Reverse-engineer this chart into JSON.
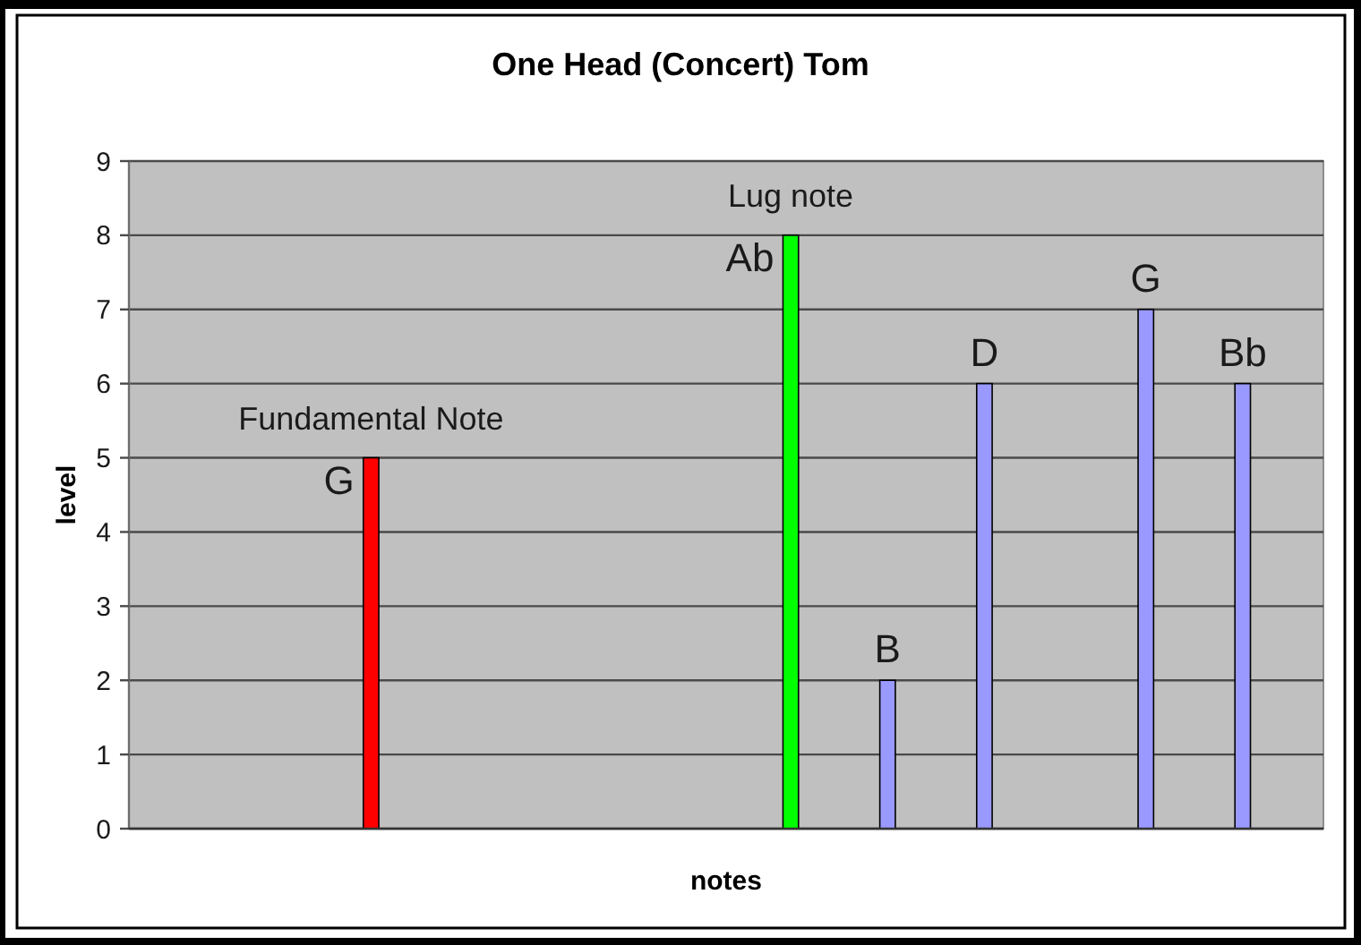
{
  "chart_data": {
    "type": "bar",
    "title": "One Head (Concert) Tom",
    "xlabel": "notes",
    "ylabel": "level",
    "categories": [
      null,
      null,
      null,
      null,
      null,
      null,
      null,
      null,
      null,
      null,
      null,
      null,
      null,
      null,
      null,
      null,
      null,
      null,
      null,
      null,
      null,
      null,
      null,
      null,
      null,
      null,
      null,
      null,
      null,
      null,
      null,
      null,
      null,
      null,
      null,
      null,
      null
    ],
    "series": [
      {
        "name": "Fundamental Note",
        "color": "#ff0000",
        "values": [
          null,
          null,
          null,
          null,
          null,
          null,
          null,
          5,
          null,
          null,
          null,
          null,
          null,
          null,
          null,
          null,
          null,
          null,
          null,
          null,
          null,
          null,
          null,
          null,
          null,
          null,
          null,
          null,
          null,
          null,
          null,
          null,
          null,
          null,
          null,
          null,
          null
        ],
        "value_labels": [
          null,
          null,
          null,
          null,
          null,
          null,
          null,
          "G",
          null,
          null,
          null,
          null,
          null,
          null,
          null,
          null,
          null,
          null,
          null,
          null,
          null,
          null,
          null,
          null,
          null,
          null,
          null,
          null,
          null,
          null,
          null,
          null,
          null,
          null,
          null,
          null,
          null
        ]
      },
      {
        "name": "Lug note",
        "color": "#00ff00",
        "values": [
          null,
          null,
          null,
          null,
          null,
          null,
          null,
          null,
          null,
          null,
          null,
          null,
          null,
          null,
          null,
          null,
          null,
          null,
          null,
          null,
          8,
          null,
          null,
          null,
          null,
          null,
          null,
          null,
          null,
          null,
          null,
          null,
          null,
          null,
          null,
          null,
          null
        ],
        "value_labels": [
          null,
          null,
          null,
          null,
          null,
          null,
          null,
          null,
          null,
          null,
          null,
          null,
          null,
          null,
          null,
          null,
          null,
          null,
          null,
          null,
          "Ab",
          null,
          null,
          null,
          null,
          null,
          null,
          null,
          null,
          null,
          null,
          null,
          null,
          null,
          null,
          null,
          null
        ]
      },
      {
        "color": "#9999ff",
        "values": [
          null,
          null,
          null,
          null,
          null,
          null,
          null,
          null,
          null,
          null,
          null,
          null,
          null,
          null,
          null,
          null,
          null,
          null,
          null,
          null,
          null,
          null,
          null,
          2,
          null,
          null,
          6,
          null,
          null,
          null,
          null,
          7,
          null,
          null,
          6,
          null,
          null
        ],
        "value_labels": [
          null,
          null,
          null,
          null,
          null,
          null,
          null,
          null,
          null,
          null,
          null,
          null,
          null,
          null,
          null,
          null,
          null,
          null,
          null,
          null,
          null,
          null,
          null,
          "B",
          null,
          null,
          "D",
          null,
          null,
          null,
          null,
          "G",
          null,
          null,
          "Bb",
          null,
          null
        ]
      }
    ],
    "ylim": [
      0,
      9
    ],
    "yticks": [
      0,
      1,
      2,
      3,
      4,
      5,
      6,
      7,
      8,
      9
    ],
    "grid": "y"
  }
}
